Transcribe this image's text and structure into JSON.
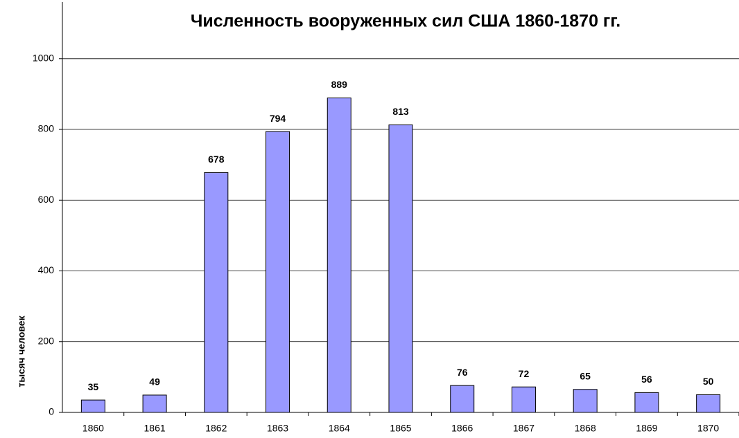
{
  "chart_data": {
    "type": "bar",
    "title": "Численность вооруженных сил США 1860-1870 гг.",
    "y_label": "тысяч человек",
    "categories": [
      "1860",
      "1861",
      "1862",
      "1863",
      "1864",
      "1865",
      "1866",
      "1867",
      "1868",
      "1869",
      "1870"
    ],
    "values": [
      35,
      49,
      678,
      794,
      889,
      813,
      76,
      72,
      65,
      56,
      50
    ],
    "color": "#9999ff",
    "ylim": [
      0,
      1160
    ],
    "yticks": [
      0,
      200,
      400,
      600,
      800,
      1000
    ],
    "grid": true
  }
}
